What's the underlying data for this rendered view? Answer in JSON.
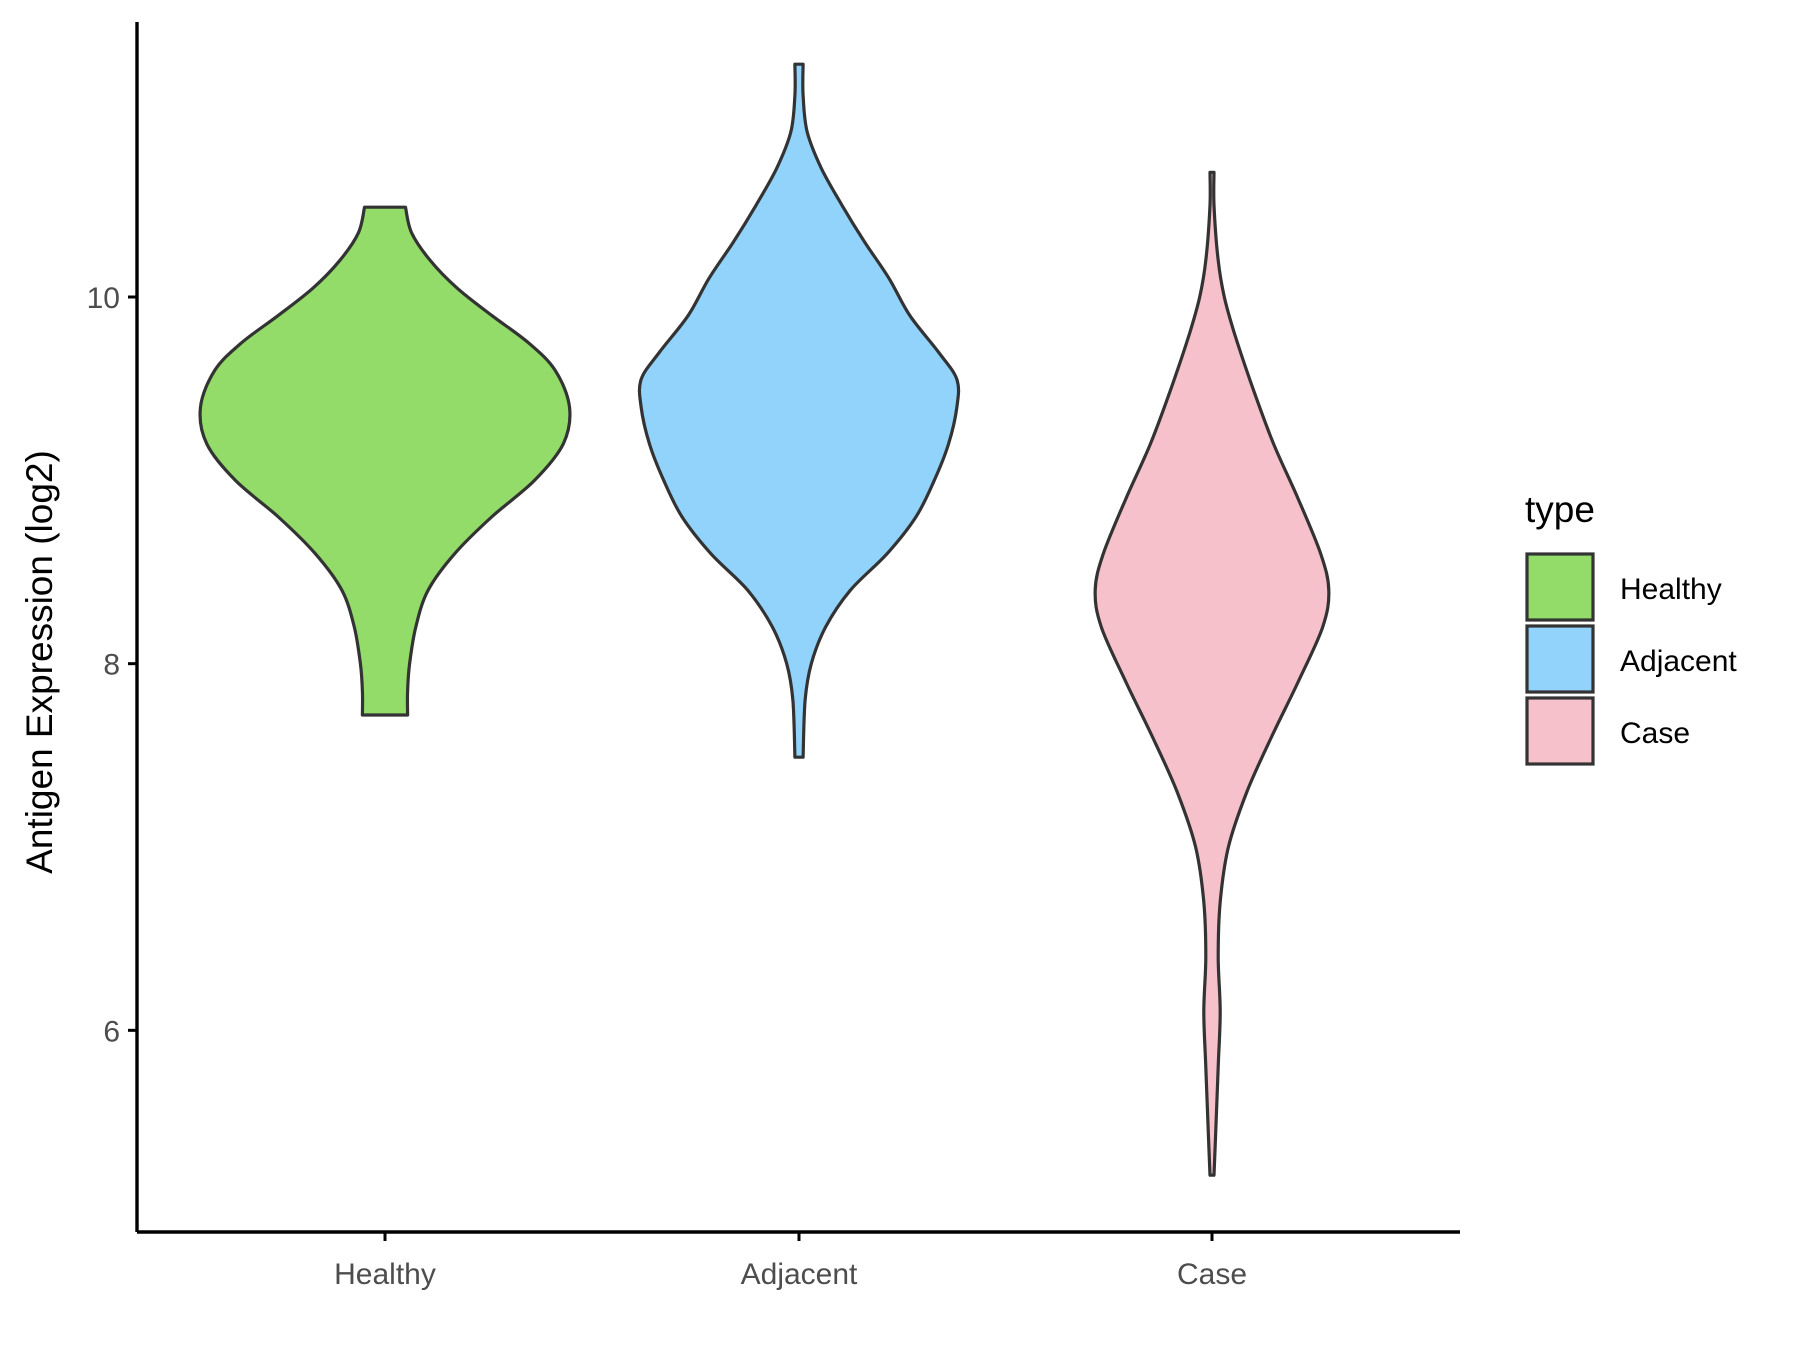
{
  "chart_data": {
    "type": "violin",
    "title": "",
    "xlabel": "",
    "ylabel": "Antigen Expression (log2)",
    "categories": [
      "Healthy",
      "Adjacent",
      "Case"
    ],
    "yticks": [
      6,
      8,
      10
    ],
    "ylim": [
      4.9,
      11.5
    ],
    "grid": false,
    "legend": {
      "title": "type",
      "position": "right",
      "entries": [
        "Healthy",
        "Adjacent",
        "Case"
      ]
    },
    "series": [
      {
        "category": "Healthy",
        "color": "#93dc69",
        "min": 7.72,
        "max": 10.49,
        "profile": [
          [
            7.72,
            0.11
          ],
          [
            7.85,
            0.11
          ],
          [
            8.0,
            0.12
          ],
          [
            8.2,
            0.15
          ],
          [
            8.4,
            0.21
          ],
          [
            8.6,
            0.34
          ],
          [
            8.8,
            0.52
          ],
          [
            9.0,
            0.73
          ],
          [
            9.2,
            0.87
          ],
          [
            9.4,
            0.9
          ],
          [
            9.6,
            0.83
          ],
          [
            9.75,
            0.7
          ],
          [
            9.9,
            0.52
          ],
          [
            10.05,
            0.35
          ],
          [
            10.2,
            0.22
          ],
          [
            10.35,
            0.13
          ],
          [
            10.49,
            0.1
          ]
        ]
      },
      {
        "category": "Adjacent",
        "color": "#92d3fc",
        "min": 7.49,
        "max": 11.27,
        "profile": [
          [
            7.49,
            0.02
          ],
          [
            7.8,
            0.03
          ],
          [
            8.0,
            0.06
          ],
          [
            8.2,
            0.13
          ],
          [
            8.4,
            0.25
          ],
          [
            8.6,
            0.43
          ],
          [
            8.8,
            0.57
          ],
          [
            9.0,
            0.66
          ],
          [
            9.2,
            0.73
          ],
          [
            9.4,
            0.77
          ],
          [
            9.55,
            0.77
          ],
          [
            9.7,
            0.68
          ],
          [
            9.9,
            0.54
          ],
          [
            10.1,
            0.44
          ],
          [
            10.3,
            0.32
          ],
          [
            10.5,
            0.21
          ],
          [
            10.7,
            0.11
          ],
          [
            10.9,
            0.04
          ],
          [
            11.1,
            0.02
          ],
          [
            11.27,
            0.02
          ]
        ]
      },
      {
        "category": "Case",
        "color": "#f7c1cb",
        "min": 5.21,
        "max": 10.68,
        "profile": [
          [
            5.21,
            0.01
          ],
          [
            5.5,
            0.02
          ],
          [
            5.8,
            0.03
          ],
          [
            6.1,
            0.04
          ],
          [
            6.4,
            0.03
          ],
          [
            6.7,
            0.04
          ],
          [
            7.0,
            0.08
          ],
          [
            7.3,
            0.17
          ],
          [
            7.6,
            0.29
          ],
          [
            7.9,
            0.42
          ],
          [
            8.2,
            0.54
          ],
          [
            8.4,
            0.57
          ],
          [
            8.6,
            0.53
          ],
          [
            8.9,
            0.42
          ],
          [
            9.2,
            0.3
          ],
          [
            9.5,
            0.2
          ],
          [
            9.8,
            0.11
          ],
          [
            10.0,
            0.06
          ],
          [
            10.2,
            0.03
          ],
          [
            10.5,
            0.01
          ],
          [
            10.68,
            0.01
          ]
        ]
      }
    ]
  }
}
